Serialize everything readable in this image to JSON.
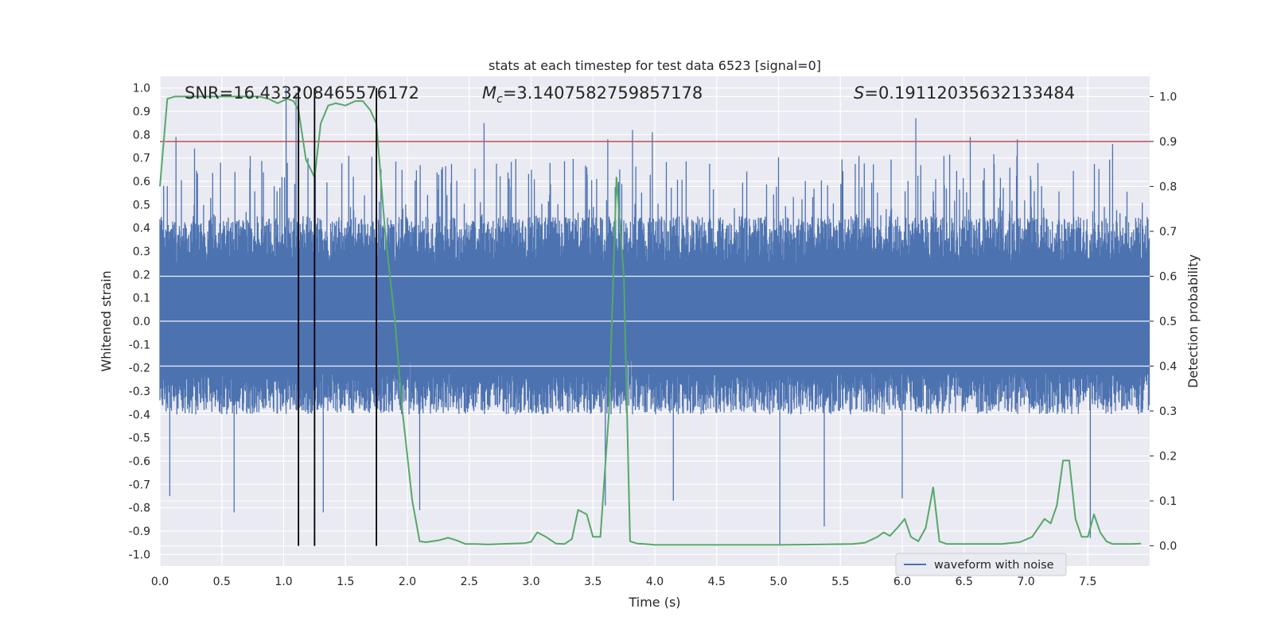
{
  "chart_data": {
    "type": "line",
    "title": "stats at each timestep for test data 6523 [signal=0]",
    "xlabel": "Time (s)",
    "ylabel_left": "Whitened strain",
    "ylabel_right": "Detection probability",
    "xlim": [
      0,
      8
    ],
    "ylim_left": [
      -1.05,
      1.05
    ],
    "ylim_right": [
      -0.045,
      1.045
    ],
    "x_ticks": [
      "0.0",
      "0.5",
      "1.0",
      "1.5",
      "2.0",
      "2.5",
      "3.0",
      "3.5",
      "4.0",
      "4.5",
      "5.0",
      "5.5",
      "6.0",
      "6.5",
      "7.0",
      "7.5"
    ],
    "y_ticks_left": [
      "1.0",
      "0.9",
      "0.8",
      "0.7",
      "0.6",
      "0.5",
      "0.4",
      "0.3",
      "0.2",
      "0.1",
      "0.0",
      "-0.1",
      "-0.2",
      "-0.3",
      "-0.4",
      "-0.5",
      "-0.6",
      "-0.7",
      "-0.8",
      "-0.9",
      "-1.0"
    ],
    "y_ticks_right": [
      "1.0",
      "0.9",
      "0.8",
      "0.7",
      "0.6",
      "0.5",
      "0.4",
      "0.3",
      "0.2",
      "0.1",
      "0.0"
    ],
    "grid": true,
    "legend": {
      "position": "lower-right",
      "entries": [
        "waveform with noise"
      ]
    },
    "annotations": {
      "snr": "SNR=16.433208465576172",
      "mc_symbol": "M",
      "mc_sub": "c",
      "mc_value": "=3.1407582759857178",
      "s_symbol": "S",
      "s_value": "=0.19112035632133484"
    },
    "threshold": {
      "axis": "right",
      "y": 0.9
    },
    "vertical_markers": [
      1.12,
      1.25,
      1.75
    ],
    "waveform": {
      "name": "waveform with noise",
      "noise_band": [
        -0.4,
        0.45
      ],
      "peaks": [
        {
          "x": 1.02,
          "y": 1.0
        },
        {
          "x": 1.1,
          "y": 0.98
        },
        {
          "x": 0.13,
          "y": 0.79
        },
        {
          "x": 0.28,
          "y": 0.74
        },
        {
          "x": 2.62,
          "y": 0.85
        },
        {
          "x": 3.82,
          "y": 0.82
        },
        {
          "x": 3.98,
          "y": 0.81
        },
        {
          "x": 6.11,
          "y": 0.87
        },
        {
          "x": 3.62,
          "y": 0.78
        },
        {
          "x": 6.55,
          "y": 0.79
        },
        {
          "x": 6.93,
          "y": 0.78
        },
        {
          "x": 7.7,
          "y": 0.76
        },
        {
          "x": 0.6,
          "y": -0.82
        },
        {
          "x": 1.32,
          "y": -0.82
        },
        {
          "x": 2.1,
          "y": -0.81
        },
        {
          "x": 5.01,
          "y": -0.96
        },
        {
          "x": 7.52,
          "y": -0.93
        },
        {
          "x": 3.6,
          "y": -0.79
        },
        {
          "x": 0.08,
          "y": -0.75
        },
        {
          "x": 5.37,
          "y": -0.88
        },
        {
          "x": 4.15,
          "y": -0.77
        },
        {
          "x": 6.0,
          "y": -0.76
        }
      ]
    },
    "probability": {
      "x": [
        0.0,
        0.06,
        0.12,
        0.2,
        0.3,
        0.4,
        0.5,
        0.6,
        0.7,
        0.8,
        0.88,
        0.95,
        1.03,
        1.08,
        1.12,
        1.18,
        1.25,
        1.3,
        1.36,
        1.42,
        1.5,
        1.58,
        1.64,
        1.7,
        1.75,
        1.82,
        1.9,
        1.96,
        2.0,
        2.04,
        2.1,
        2.15,
        2.2,
        2.25,
        2.33,
        2.4,
        2.47,
        2.55,
        2.65,
        2.75,
        2.85,
        2.95,
        3.0,
        3.05,
        3.12,
        3.2,
        3.27,
        3.33,
        3.38,
        3.45,
        3.5,
        3.56,
        3.63,
        3.69,
        3.75,
        3.8,
        3.86,
        3.92,
        4.0,
        4.15,
        4.5,
        5.0,
        5.3,
        5.6,
        5.7,
        5.8,
        5.85,
        5.9,
        5.96,
        6.02,
        6.07,
        6.13,
        6.19,
        6.25,
        6.3,
        6.36,
        6.45,
        6.6,
        6.8,
        6.95,
        7.05,
        7.1,
        7.15,
        7.2,
        7.25,
        7.3,
        7.35,
        7.4,
        7.45,
        7.5,
        7.55,
        7.6,
        7.65,
        7.7,
        7.75,
        7.85,
        7.93
      ],
      "y": [
        0.8,
        0.995,
        1.0,
        1.0,
        1.0,
        1.0,
        1.0,
        1.0,
        1.0,
        1.0,
        0.995,
        0.985,
        0.995,
        0.99,
        0.97,
        0.86,
        0.82,
        0.94,
        0.98,
        0.985,
        0.98,
        0.99,
        0.99,
        0.97,
        0.94,
        0.7,
        0.5,
        0.3,
        0.2,
        0.1,
        0.01,
        0.008,
        0.01,
        0.012,
        0.018,
        0.012,
        0.004,
        0.004,
        0.003,
        0.004,
        0.005,
        0.006,
        0.009,
        0.03,
        0.02,
        0.005,
        0.004,
        0.015,
        0.08,
        0.07,
        0.02,
        0.02,
        0.3,
        0.82,
        0.6,
        0.01,
        0.005,
        0.004,
        0.002,
        0.002,
        0.002,
        0.002,
        0.003,
        0.004,
        0.007,
        0.02,
        0.03,
        0.022,
        0.04,
        0.06,
        0.02,
        0.01,
        0.04,
        0.13,
        0.01,
        0.004,
        0.004,
        0.004,
        0.004,
        0.008,
        0.02,
        0.04,
        0.06,
        0.05,
        0.09,
        0.19,
        0.19,
        0.06,
        0.02,
        0.02,
        0.07,
        0.03,
        0.01,
        0.004,
        0.004,
        0.004,
        0.005
      ]
    },
    "colors": {
      "background": "#eaeaf2",
      "grid": "#ffffff",
      "waveform": "#4c72b0",
      "probability": "#55a868",
      "threshold": "#c44e52",
      "markers": "#000000"
    }
  }
}
